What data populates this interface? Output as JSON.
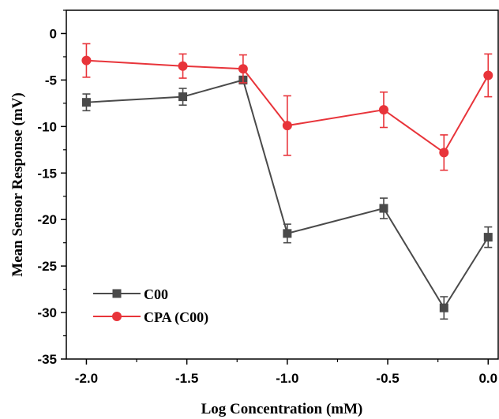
{
  "chart_data": {
    "type": "line",
    "title": "",
    "xlabel": "Log Concentration (mM)",
    "ylabel": "Mean Sensor Response (mV)",
    "xlim": [
      -2.1,
      0.05
    ],
    "ylim": [
      -35,
      2.5
    ],
    "x_ticks": [
      -2.0,
      -1.5,
      -1.0,
      -0.5,
      0.0
    ],
    "x_tick_labels": [
      "-2.0",
      "-1.5",
      "-1.0",
      "-0.5",
      "0.0"
    ],
    "y_ticks": [
      0,
      -5,
      -10,
      -15,
      -20,
      -25,
      -30,
      -35
    ],
    "y_tick_labels": [
      "0",
      "-5",
      "-10",
      "-15",
      "-20",
      "-25",
      "-30",
      "-35"
    ],
    "grid": false,
    "legend_position": "bottom-left",
    "x": [
      -2.0,
      -1.52,
      -1.22,
      -1.0,
      -0.52,
      -0.22,
      0.0
    ],
    "series": [
      {
        "name": "C00",
        "marker": "square",
        "color": "#4a4a4a",
        "values": [
          -7.4,
          -6.8,
          -5.0,
          -21.5,
          -18.8,
          -29.5,
          -21.9
        ],
        "errors": [
          0.9,
          0.9,
          0.4,
          1.0,
          1.1,
          1.2,
          1.1
        ]
      },
      {
        "name": "CPA (C00)",
        "marker": "circle",
        "color": "#e8343a",
        "values": [
          -2.9,
          -3.5,
          -3.8,
          -9.9,
          -8.2,
          -12.8,
          -4.5
        ],
        "errors": [
          1.8,
          1.3,
          1.5,
          3.2,
          1.9,
          1.9,
          2.3
        ]
      }
    ]
  }
}
